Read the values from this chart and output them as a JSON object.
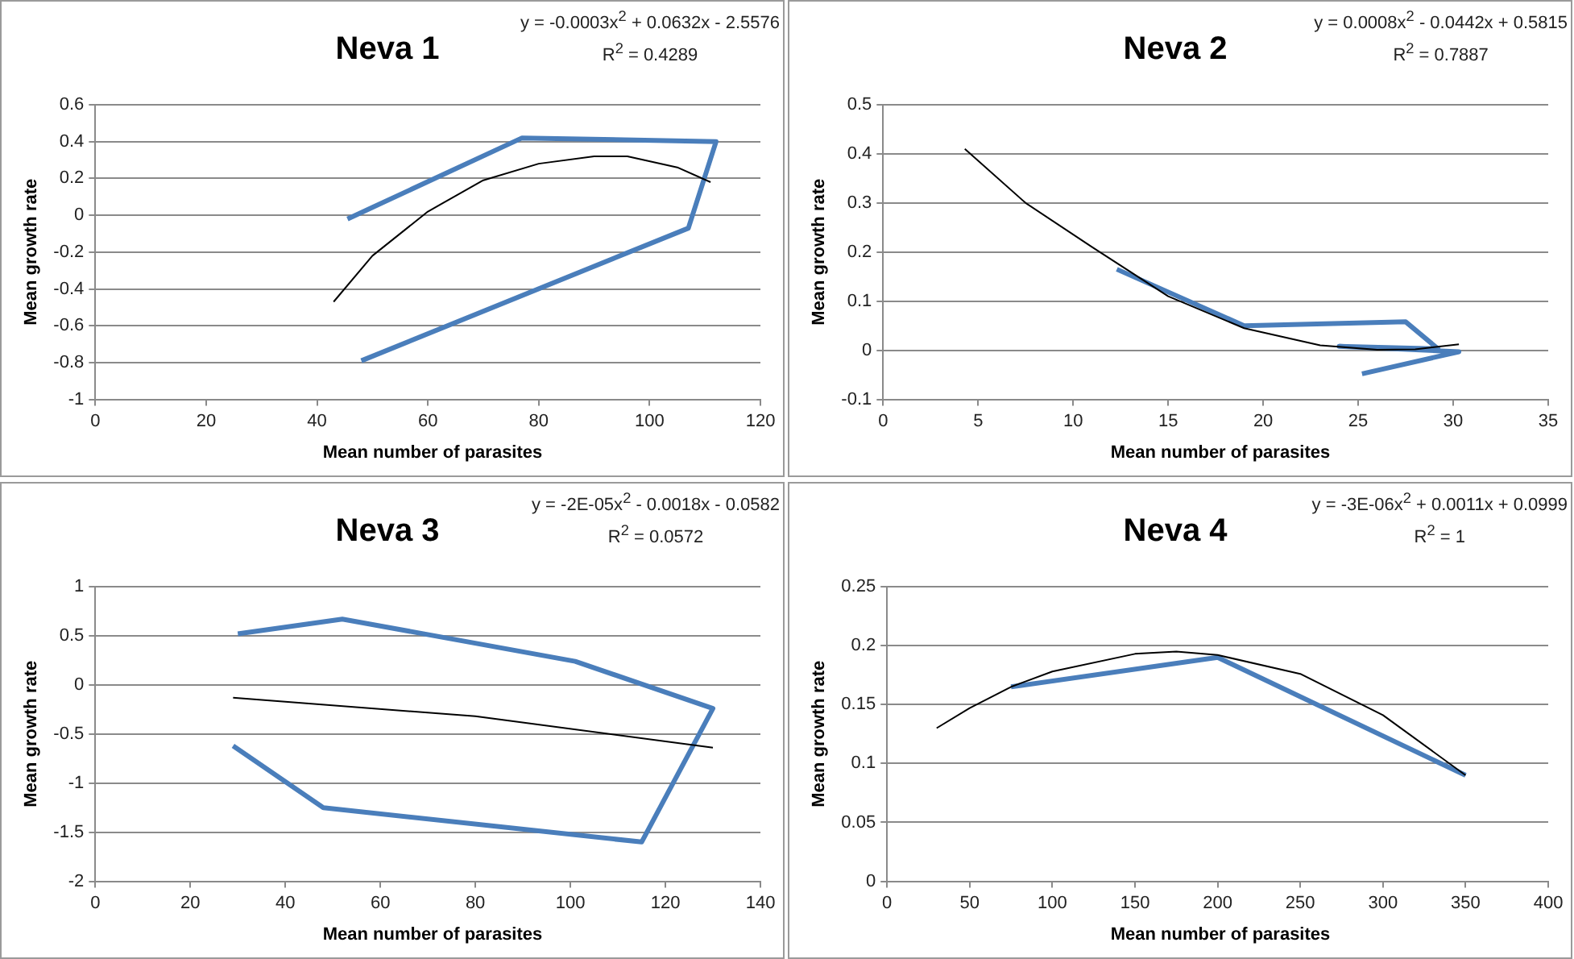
{
  "chart_data": [
    {
      "type": "line",
      "title": "Neva 1",
      "xlabel": "Mean number of parasites",
      "ylabel": "Mean growth rate",
      "annotations": [
        "y = -0.0003x$^{2}$ + 0.0632x - 2.5576",
        "R$^{2}$ = 0.4289"
      ],
      "xlim": [
        0,
        120
      ],
      "xticks": [
        0,
        20,
        40,
        60,
        80,
        100,
        120
      ],
      "ylim": [
        -1,
        0.6
      ],
      "yticks": [
        -1,
        -0.8,
        -0.6,
        -0.4,
        -0.2,
        0,
        0.2,
        0.4,
        0.6
      ],
      "grid": "y",
      "legend": false,
      "marker": "none",
      "series": [
        {
          "color": "#4a7ebb",
          "x": [
            45.5,
            77,
            112,
            107,
            48
          ],
          "values": [
            -0.02,
            0.42,
            0.4,
            -0.07,
            -0.79
          ]
        },
        {
          "type": "line",
          "color": "#000000",
          "x": [
            43,
            50,
            60,
            70,
            80,
            90,
            96,
            105,
            111
          ],
          "values": [
            -0.47,
            -0.22,
            0.02,
            0.19,
            0.28,
            0.32,
            0.32,
            0.26,
            0.18
          ]
        }
      ]
    },
    {
      "type": "line",
      "title": "Neva 2",
      "xlabel": "Mean number of parasites",
      "ylabel": "Mean growth rate",
      "annotations": [
        "y = 0.0008x$^{2}$ - 0.0442x + 0.5815",
        "R$^{2}$ = 0.7887"
      ],
      "xlim": [
        0,
        35
      ],
      "xticks": [
        0,
        5,
        10,
        15,
        20,
        25,
        30,
        35
      ],
      "ylim": [
        -0.1,
        0.5
      ],
      "yticks": [
        -0.1,
        0,
        0.1,
        0.2,
        0.3,
        0.4,
        0.5
      ],
      "grid": "y",
      "legend": false,
      "marker": "none",
      "series": [
        {
          "color": "#4a7ebb",
          "x": [
            12.3,
            19,
            27.5,
            29.2,
            24,
            30.3,
            25.2
          ],
          "values": [
            0.165,
            0.05,
            0.058,
            0.003,
            0.008,
            -0.003,
            -0.048
          ]
        },
        {
          "type": "line",
          "color": "#000000",
          "x": [
            4.3,
            7.5,
            11,
            15,
            19,
            23,
            26,
            28,
            30.3
          ],
          "values": [
            0.41,
            0.3,
            0.21,
            0.11,
            0.045,
            0.01,
            0.001,
            0.002,
            0.012
          ]
        }
      ]
    },
    {
      "type": "line",
      "title": "Neva 3",
      "xlabel": "Mean number of parasites",
      "ylabel": "Mean growth rate",
      "annotations": [
        "y = -2E-05x$^{2}$ - 0.0018x - 0.0582",
        "R$^{2}$ = 0.0572"
      ],
      "xlim": [
        0,
        140
      ],
      "xticks": [
        0,
        20,
        40,
        60,
        80,
        100,
        120,
        140
      ],
      "ylim": [
        -2,
        1
      ],
      "yticks": [
        -2,
        -1.5,
        -1,
        -0.5,
        0,
        0.5,
        1
      ],
      "grid": "y",
      "legend": false,
      "marker": "none",
      "series": [
        {
          "color": "#4a7ebb",
          "x": [
            30,
            52,
            101,
            130,
            115,
            48,
            29
          ],
          "values": [
            0.52,
            0.67,
            0.24,
            -0.24,
            -1.6,
            -1.25,
            -0.62
          ]
        },
        {
          "type": "line",
          "color": "#000000",
          "x": [
            29,
            80,
            130
          ],
          "values": [
            -0.13,
            -0.32,
            -0.64
          ]
        }
      ]
    },
    {
      "type": "line",
      "title": "Neva 4",
      "xlabel": "Mean number of parasites",
      "ylabel": "Mean growth rate",
      "annotations": [
        "y = -3E-06x$^{2}$ + 0.0011x + 0.0999",
        "R$^{2}$ = 1"
      ],
      "xlim": [
        0,
        400
      ],
      "xticks": [
        0,
        50,
        100,
        150,
        200,
        250,
        300,
        350,
        400
      ],
      "ylim": [
        0,
        0.25
      ],
      "yticks": [
        0,
        0.05,
        0.1,
        0.15,
        0.2,
        0.25
      ],
      "grid": "y",
      "legend": false,
      "marker": "none",
      "series": [
        {
          "color": "#4a7ebb",
          "x": [
            75,
            200,
            350
          ],
          "values": [
            0.165,
            0.19,
            0.09
          ]
        },
        {
          "type": "line",
          "color": "#000000",
          "x": [
            30,
            50,
            75,
            100,
            150,
            175,
            200,
            250,
            300,
            350
          ],
          "values": [
            0.13,
            0.147,
            0.165,
            0.178,
            0.193,
            0.195,
            0.192,
            0.176,
            0.141,
            0.09
          ]
        }
      ]
    }
  ]
}
